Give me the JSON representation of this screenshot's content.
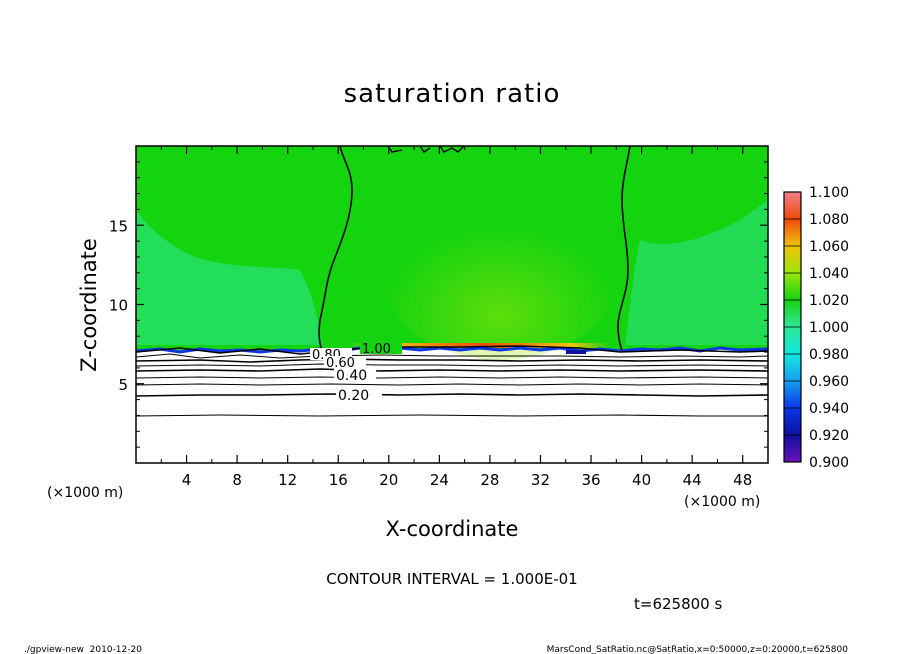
{
  "chart_data": {
    "type": "heatmap",
    "title": "saturation ratio",
    "xlabel": "X-coordinate",
    "ylabel": "Z-coordinate",
    "x_units": "(×1000 m)",
    "y_units": "(×1000 m)",
    "xlim": [
      0,
      50
    ],
    "ylim": [
      0,
      20
    ],
    "x_ticks": [
      4,
      8,
      12,
      16,
      20,
      24,
      28,
      32,
      36,
      40,
      44,
      48
    ],
    "y_ticks": [
      5,
      10,
      15
    ],
    "colorbar": {
      "levels": [
        0.9,
        0.92,
        0.94,
        0.96,
        0.98,
        1.0,
        1.02,
        1.04,
        1.06,
        1.08,
        1.1
      ],
      "labels": [
        "0.900",
        "0.920",
        "0.940",
        "0.960",
        "0.980",
        "1.000",
        "1.020",
        "1.040",
        "1.060",
        "1.080",
        "1.100"
      ],
      "colors": [
        "#6a12b8",
        "#0f0fa0",
        "#0a37e6",
        "#15a0f0",
        "#13e8e0",
        "#2fe897",
        "#14d30f",
        "#9ae60a",
        "#f0c30c",
        "#ef4a0a",
        "#f0808a"
      ]
    },
    "contour_labels": [
      "1.00",
      "0.80",
      "0.60",
      "0.40",
      "0.20"
    ],
    "contour_levels": [
      1.0,
      0.8,
      0.6,
      0.4,
      0.2
    ],
    "supersaturated_layer": {
      "x_range": [
        17,
        36
      ],
      "z": 7.3
    },
    "saturation_front_x": [
      15,
      38.5
    ],
    "cloud_base_z": 7.0
  },
  "footer": {
    "contour_interval": "CONTOUR INTERVAL = 1.000E-01",
    "time": "t=625800 s",
    "left_note": "./gpview-new  2010-12-20",
    "right_note": "MarsCond_SatRatio.nc@SatRatio,x=0:50000,z=0:20000,t=625800"
  }
}
